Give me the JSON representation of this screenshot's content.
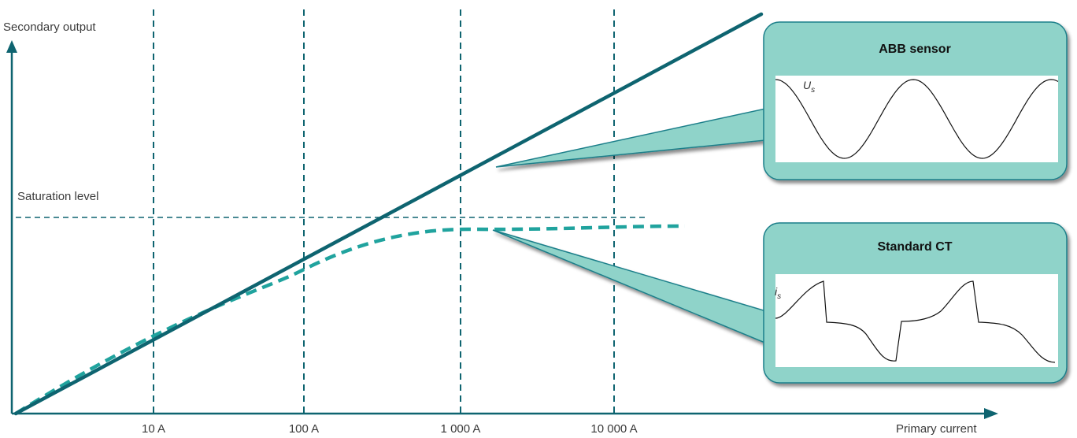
{
  "chart_data": {
    "type": "line",
    "title": "",
    "xlabel": "Primary current",
    "ylabel": "Secondary output",
    "xscale": "log",
    "x_ticks": [
      "10 A",
      "100 A",
      "1 000 A",
      "10 000 A"
    ],
    "grid": true,
    "reference_line": {
      "label": "Saturation level"
    },
    "series": [
      {
        "style": "solid",
        "color": "#0e6470",
        "x": [
          1,
          10,
          100,
          1000,
          10000
        ],
        "y": [
          0,
          0.22,
          0.44,
          0.66,
          0.88
        ]
      },
      {
        "style": "dashed",
        "color": "#20a39e",
        "x": [
          1,
          10,
          100,
          1000,
          10000
        ],
        "y": [
          0,
          0.2,
          0.39,
          0.5,
          0.5
        ]
      }
    ]
  },
  "callouts": [
    {
      "title": "ABB sensor",
      "signal": "U",
      "signal_sub": "s",
      "waveform": "sine"
    },
    {
      "title": "Standard CT",
      "signal": "i",
      "signal_sub": "s",
      "waveform": "distorted"
    }
  ],
  "colors": {
    "axis": "#0e6470",
    "sensor_line": "#0e6470",
    "ct_line": "#20a39e",
    "callout_fill": "#8fd3c9",
    "callout_border": "#1c7f8a"
  }
}
